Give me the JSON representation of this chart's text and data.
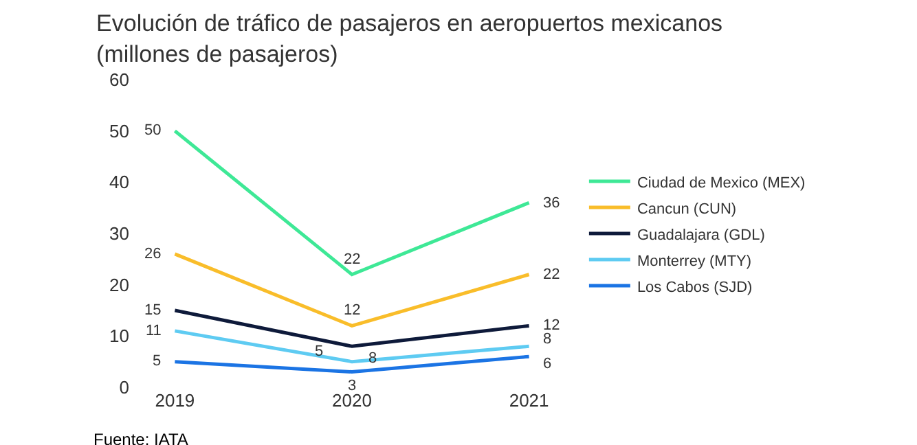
{
  "chart_data": {
    "type": "line",
    "title": "Evolución de tráfico de pasajeros en aeropuertos mexicanos\n(millones de pasajeros)",
    "categories": [
      "2019",
      "2020",
      "2021"
    ],
    "ylim": [
      0,
      60
    ],
    "yticks": [
      0,
      10,
      20,
      30,
      40,
      50,
      60
    ],
    "legend": "right",
    "marker": "none",
    "line_style": "solid",
    "data_labels": true,
    "series": [
      {
        "name": "Ciudad de Mexico (MEX)",
        "color": "#3ee896",
        "values": [
          50,
          22,
          36
        ]
      },
      {
        "name": "Cancun (CUN)",
        "color": "#f9bd2a",
        "values": [
          26,
          12,
          22
        ]
      },
      {
        "name": "Guadalajara (GDL)",
        "color": "#0e1a3a",
        "values": [
          15,
          8,
          12
        ]
      },
      {
        "name": "Monterrey (MTY)",
        "color": "#5ecbf2",
        "values": [
          11,
          5,
          8
        ]
      },
      {
        "name": "Los Cabos (SJD)",
        "color": "#1b74e4",
        "values": [
          5,
          3,
          6
        ]
      }
    ],
    "annotations": [
      "Fuente: IATA"
    ]
  }
}
